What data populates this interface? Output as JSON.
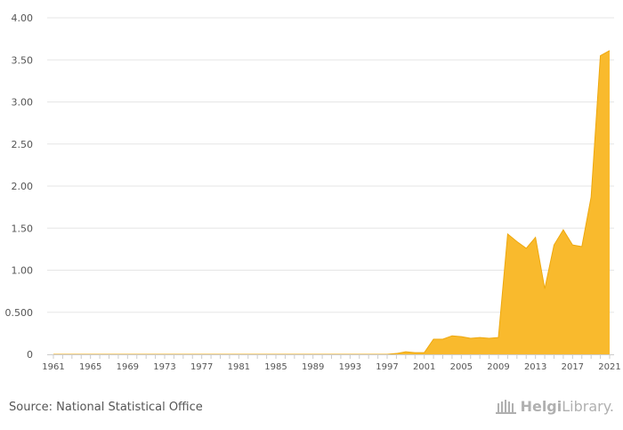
{
  "chart_data": {
    "type": "area",
    "title": "",
    "xlabel": "",
    "ylabel": "",
    "ylim": [
      0,
      4.0
    ],
    "y_ticks": [
      {
        "value": 0,
        "label": "0"
      },
      {
        "value": 0.5,
        "label": "0.500"
      },
      {
        "value": 1.0,
        "label": "1.00"
      },
      {
        "value": 1.5,
        "label": "1.50"
      },
      {
        "value": 2.0,
        "label": "2.00"
      },
      {
        "value": 2.5,
        "label": "2.50"
      },
      {
        "value": 3.0,
        "label": "3.00"
      },
      {
        "value": 3.5,
        "label": "3.50"
      },
      {
        "value": 4.0,
        "label": "4.00"
      }
    ],
    "x_tick_labels": [
      "1961",
      "1965",
      "1969",
      "1973",
      "1977",
      "1981",
      "1985",
      "1989",
      "1993",
      "1997",
      "2001",
      "2005",
      "2009",
      "2013",
      "2017",
      "2021"
    ],
    "grid": true,
    "color": "#F9BA2D",
    "edge_color": "#EEA80E",
    "series": [
      {
        "name": "value",
        "x": [
          1961,
          1962,
          1963,
          1964,
          1965,
          1966,
          1967,
          1968,
          1969,
          1970,
          1971,
          1972,
          1973,
          1974,
          1975,
          1976,
          1977,
          1978,
          1979,
          1980,
          1981,
          1982,
          1983,
          1984,
          1985,
          1986,
          1987,
          1988,
          1989,
          1990,
          1991,
          1992,
          1993,
          1994,
          1995,
          1996,
          1997,
          1998,
          1999,
          2000,
          2001,
          2002,
          2003,
          2004,
          2005,
          2006,
          2007,
          2008,
          2009,
          2010,
          2011,
          2012,
          2013,
          2014,
          2015,
          2016,
          2017,
          2018,
          2019,
          2020,
          2021
        ],
        "values": [
          0,
          0,
          0,
          0,
          0,
          0,
          0,
          0,
          0,
          0,
          0,
          0,
          0,
          0,
          0,
          0,
          0,
          0,
          0,
          0,
          0,
          0,
          0,
          0,
          0,
          0,
          0,
          0,
          0,
          0,
          0,
          0,
          0,
          0,
          0,
          0,
          0,
          0.01,
          0.03,
          0.02,
          0.02,
          0.18,
          0.18,
          0.22,
          0.21,
          0.19,
          0.2,
          0.19,
          0.2,
          1.43,
          1.34,
          1.26,
          1.39,
          0.78,
          1.3,
          1.48,
          1.3,
          1.28,
          1.87,
          3.55,
          3.61
        ]
      }
    ]
  },
  "footer": {
    "source": "Source: National Statistical Office",
    "brand_bold": "Helgi",
    "brand_rest": "Library."
  }
}
